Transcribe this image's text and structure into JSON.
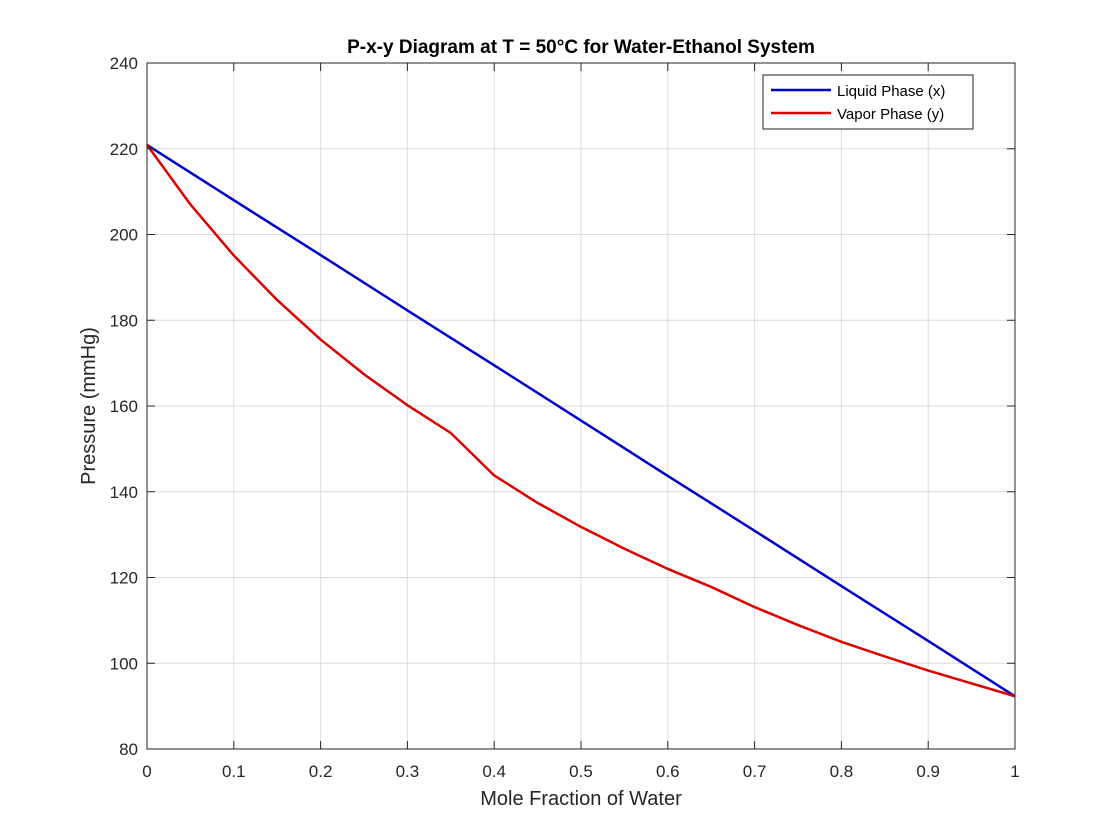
{
  "chart_data": {
    "type": "line",
    "title": "P-x-y Diagram at T = 50°C for Water-Ethanol System",
    "xlabel": "Mole Fraction of Water",
    "ylabel": "Pressure (mmHg)",
    "xlim": [
      0,
      1
    ],
    "ylim": [
      80,
      240
    ],
    "xticks": [
      0,
      0.1,
      0.2,
      0.3,
      0.4,
      0.5,
      0.6,
      0.7,
      0.8,
      0.9,
      1
    ],
    "xtick_labels": [
      "0",
      "0.1",
      "0.2",
      "0.3",
      "0.4",
      "0.5",
      "0.6",
      "0.7",
      "0.8",
      "0.9",
      "1"
    ],
    "yticks": [
      80,
      100,
      120,
      140,
      160,
      180,
      200,
      220,
      240
    ],
    "ytick_labels": [
      "80",
      "100",
      "120",
      "140",
      "160",
      "180",
      "200",
      "220",
      "240"
    ],
    "grid": true,
    "legend_position": "top-right",
    "series": [
      {
        "name": "Liquid Phase (x)",
        "color": "#0000cc",
        "x": [
          0,
          0.1,
          0.2,
          0.3,
          0.4,
          0.5,
          0.6,
          0.7,
          0.8,
          0.9,
          1
        ],
        "y": [
          220.9,
          208.0,
          195.2,
          182.3,
          169.5,
          156.6,
          143.7,
          130.9,
          118.0,
          105.2,
          92.3
        ]
      },
      {
        "name": "Vapor Phase (y)",
        "color": "#dd0000",
        "x": [
          0,
          0.05,
          0.1,
          0.15,
          0.2,
          0.25,
          0.3,
          0.35,
          0.4,
          0.45,
          0.5,
          0.55,
          0.6,
          0.65,
          0.7,
          0.75,
          0.8,
          0.85,
          0.9,
          0.95,
          1
        ],
        "y": [
          220.9,
          207.0,
          195.1,
          184.7,
          175.5,
          167.4,
          160.2,
          153.7,
          143.8,
          137.4,
          131.8,
          126.7,
          122.0,
          117.8,
          113.1,
          108.9,
          105.0,
          101.6,
          98.3,
          95.3,
          92.3
        ]
      }
    ]
  }
}
